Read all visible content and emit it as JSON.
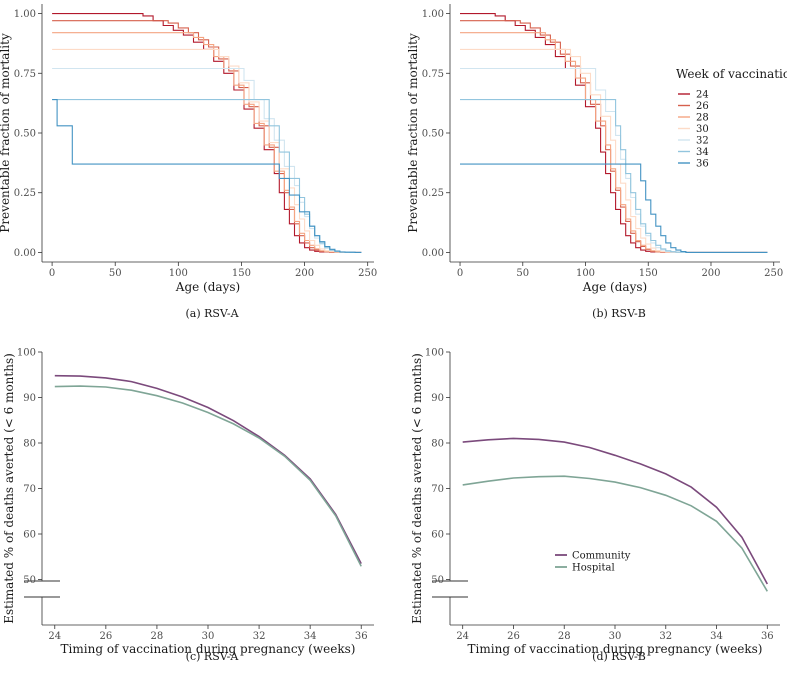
{
  "chart_data": [
    {
      "id": "a",
      "type": "line",
      "step": true,
      "caption": "(a) RSV-A",
      "xlabel": "Age (days)",
      "ylabel": "Preventable fraction of mortality",
      "xlim": [
        -8,
        255
      ],
      "ylim": [
        -0.04,
        1.04
      ],
      "xticks": [
        0,
        50,
        100,
        150,
        200,
        250
      ],
      "yticks": [
        0.0,
        0.25,
        0.5,
        0.75,
        1.0
      ],
      "ytick_labels": [
        "0.00",
        "0.25",
        "0.50",
        "0.75",
        "1.00"
      ],
      "grid": false,
      "series": [
        {
          "name": "24",
          "color": "#b2182b",
          "x": [
            0,
            72,
            80,
            88,
            96,
            104,
            112,
            120,
            128,
            136,
            144,
            152,
            160,
            168,
            176,
            180,
            184,
            188,
            192,
            196,
            200,
            204,
            208,
            212,
            220,
            245
          ],
          "y": [
            1.0,
            0.99,
            0.97,
            0.95,
            0.93,
            0.91,
            0.88,
            0.85,
            0.8,
            0.75,
            0.68,
            0.6,
            0.52,
            0.43,
            0.33,
            0.25,
            0.18,
            0.12,
            0.07,
            0.04,
            0.02,
            0.01,
            0.005,
            0.002,
            0.0,
            0.0
          ]
        },
        {
          "name": "26",
          "color": "#d6604d",
          "x": [
            0,
            92,
            100,
            108,
            116,
            124,
            132,
            140,
            148,
            156,
            164,
            172,
            180,
            184,
            188,
            192,
            196,
            200,
            204,
            208,
            212,
            220,
            245
          ],
          "y": [
            0.97,
            0.96,
            0.94,
            0.92,
            0.89,
            0.86,
            0.81,
            0.76,
            0.69,
            0.61,
            0.53,
            0.44,
            0.33,
            0.25,
            0.18,
            0.12,
            0.07,
            0.04,
            0.02,
            0.01,
            0.005,
            0.0,
            0.0
          ]
        },
        {
          "name": "28",
          "color": "#f4a582",
          "x": [
            0,
            112,
            120,
            128,
            136,
            144,
            152,
            160,
            168,
            176,
            184,
            188,
            192,
            196,
            200,
            204,
            208,
            212,
            216,
            224,
            245
          ],
          "y": [
            0.92,
            0.9,
            0.87,
            0.82,
            0.77,
            0.7,
            0.62,
            0.54,
            0.45,
            0.34,
            0.26,
            0.19,
            0.13,
            0.08,
            0.05,
            0.03,
            0.015,
            0.007,
            0.003,
            0.0,
            0.0
          ]
        },
        {
          "name": "30",
          "color": "#fddbc7",
          "x": [
            0,
            132,
            140,
            148,
            156,
            164,
            172,
            180,
            188,
            192,
            196,
            200,
            204,
            208,
            212,
            216,
            220,
            228,
            245
          ],
          "y": [
            0.85,
            0.82,
            0.78,
            0.71,
            0.63,
            0.55,
            0.46,
            0.35,
            0.27,
            0.2,
            0.14,
            0.09,
            0.05,
            0.03,
            0.015,
            0.007,
            0.003,
            0.0,
            0.0
          ]
        },
        {
          "name": "32",
          "color": "#d1e5f0",
          "x": [
            0,
            152,
            160,
            168,
            176,
            184,
            192,
            196,
            200,
            204,
            208,
            212,
            216,
            220,
            224,
            232,
            245
          ],
          "y": [
            0.77,
            0.72,
            0.64,
            0.56,
            0.47,
            0.36,
            0.28,
            0.21,
            0.15,
            0.1,
            0.06,
            0.035,
            0.018,
            0.008,
            0.003,
            0.0,
            0.0
          ]
        },
        {
          "name": "34",
          "color": "#92c5de",
          "x": [
            0,
            172,
            180,
            188,
            196,
            200,
            204,
            208,
            212,
            216,
            220,
            224,
            228,
            236,
            245
          ],
          "y": [
            0.64,
            0.53,
            0.42,
            0.31,
            0.23,
            0.16,
            0.11,
            0.07,
            0.04,
            0.02,
            0.01,
            0.004,
            0.001,
            0.0,
            0.0
          ]
        },
        {
          "name": "36",
          "color": "#4393c3",
          "x": [
            0,
            4,
            16,
            172,
            180,
            188,
            196,
            204,
            208,
            212,
            216,
            220,
            224,
            228,
            232,
            240,
            245
          ],
          "y": [
            0.64,
            0.53,
            0.37,
            0.37,
            0.31,
            0.24,
            0.17,
            0.11,
            0.07,
            0.045,
            0.025,
            0.013,
            0.006,
            0.002,
            0.001,
            0.0,
            0.0
          ]
        }
      ]
    },
    {
      "id": "b",
      "type": "line",
      "step": true,
      "caption": "(b) RSV-B",
      "xlabel": "Age (days)",
      "ylabel": "Preventable fraction of mortality",
      "xlim": [
        -8,
        255
      ],
      "ylim": [
        -0.04,
        1.04
      ],
      "xticks": [
        0,
        50,
        100,
        150,
        200,
        250
      ],
      "yticks": [
        0.0,
        0.25,
        0.5,
        0.75,
        1.0
      ],
      "ytick_labels": [
        "0.00",
        "0.25",
        "0.50",
        "0.75",
        "1.00"
      ],
      "grid": false,
      "legend": {
        "title": "Week of vaccination",
        "position": "right"
      },
      "series": [
        {
          "name": "24",
          "color": "#b2182b",
          "x": [
            0,
            28,
            36,
            44,
            52,
            60,
            68,
            76,
            84,
            92,
            100,
            108,
            112,
            116,
            120,
            124,
            128,
            132,
            136,
            140,
            144,
            148,
            152,
            160,
            245
          ],
          "y": [
            1.0,
            0.99,
            0.97,
            0.95,
            0.93,
            0.9,
            0.87,
            0.82,
            0.77,
            0.7,
            0.61,
            0.52,
            0.42,
            0.33,
            0.25,
            0.18,
            0.12,
            0.07,
            0.04,
            0.02,
            0.01,
            0.005,
            0.002,
            0.0,
            0.0
          ]
        },
        {
          "name": "26",
          "color": "#d6604d",
          "x": [
            0,
            48,
            56,
            64,
            72,
            80,
            88,
            96,
            104,
            112,
            116,
            120,
            124,
            128,
            132,
            136,
            140,
            144,
            148,
            152,
            156,
            164,
            245
          ],
          "y": [
            0.97,
            0.96,
            0.94,
            0.91,
            0.88,
            0.83,
            0.78,
            0.71,
            0.62,
            0.53,
            0.43,
            0.34,
            0.26,
            0.19,
            0.13,
            0.08,
            0.045,
            0.025,
            0.012,
            0.005,
            0.002,
            0.0,
            0.0
          ]
        },
        {
          "name": "28",
          "color": "#f4a582",
          "x": [
            0,
            68,
            76,
            84,
            92,
            100,
            108,
            116,
            120,
            124,
            128,
            132,
            136,
            140,
            144,
            148,
            152,
            156,
            160,
            168,
            245
          ],
          "y": [
            0.92,
            0.89,
            0.85,
            0.8,
            0.73,
            0.64,
            0.55,
            0.45,
            0.35,
            0.27,
            0.2,
            0.14,
            0.09,
            0.05,
            0.03,
            0.015,
            0.007,
            0.003,
            0.001,
            0.0,
            0.0
          ]
        },
        {
          "name": "30",
          "color": "#fddbc7",
          "x": [
            0,
            88,
            96,
            104,
            112,
            120,
            124,
            128,
            132,
            136,
            140,
            144,
            148,
            152,
            156,
            160,
            164,
            172,
            245
          ],
          "y": [
            0.85,
            0.82,
            0.75,
            0.66,
            0.57,
            0.47,
            0.37,
            0.29,
            0.22,
            0.15,
            0.1,
            0.06,
            0.035,
            0.018,
            0.008,
            0.003,
            0.001,
            0.0,
            0.0
          ]
        },
        {
          "name": "32",
          "color": "#d1e5f0",
          "x": [
            0,
            108,
            116,
            124,
            128,
            132,
            136,
            140,
            144,
            148,
            152,
            156,
            160,
            164,
            168,
            176,
            245
          ],
          "y": [
            0.77,
            0.68,
            0.59,
            0.49,
            0.39,
            0.31,
            0.23,
            0.16,
            0.11,
            0.07,
            0.04,
            0.02,
            0.01,
            0.004,
            0.001,
            0.0,
            0.0
          ]
        },
        {
          "name": "34",
          "color": "#92c5de",
          "x": [
            0,
            124,
            128,
            132,
            136,
            140,
            144,
            148,
            152,
            156,
            160,
            164,
            168,
            172,
            180,
            245
          ],
          "y": [
            0.64,
            0.53,
            0.43,
            0.33,
            0.25,
            0.18,
            0.12,
            0.08,
            0.05,
            0.03,
            0.015,
            0.007,
            0.003,
            0.001,
            0.0,
            0.0
          ]
        },
        {
          "name": "36",
          "color": "#4393c3",
          "x": [
            0,
            144,
            148,
            152,
            156,
            160,
            164,
            168,
            172,
            176,
            180,
            245
          ],
          "y": [
            0.37,
            0.3,
            0.22,
            0.16,
            0.11,
            0.07,
            0.04,
            0.02,
            0.01,
            0.004,
            0.0,
            0.0
          ]
        }
      ]
    },
    {
      "id": "c",
      "type": "line",
      "caption": "(c) RSV-A",
      "xlabel": "Timing of vaccination during pregnancy (weeks)",
      "ylabel": "Estimated % of deaths averted (< 6 months)",
      "xlim": [
        23.5,
        36.5
      ],
      "ylim": [
        40,
        100
      ],
      "axis_break": true,
      "xticks": [
        24,
        26,
        28,
        30,
        32,
        34,
        36
      ],
      "yticks": [
        50,
        60,
        70,
        80,
        90,
        100
      ],
      "grid": false,
      "x": [
        24,
        25,
        26,
        27,
        28,
        29,
        30,
        31,
        32,
        33,
        34,
        35,
        36
      ],
      "series": [
        {
          "name": "Community",
          "color": "#7b4a7c",
          "values": [
            94.8,
            94.7,
            94.3,
            93.5,
            92.0,
            90.1,
            87.8,
            84.9,
            81.4,
            77.3,
            72.1,
            64.3,
            53.5
          ]
        },
        {
          "name": "Hospital",
          "color": "#7fa596",
          "values": [
            92.4,
            92.5,
            92.3,
            91.6,
            90.4,
            88.8,
            86.7,
            84.2,
            81.1,
            77.1,
            71.8,
            64.0,
            52.9
          ]
        }
      ]
    },
    {
      "id": "d",
      "type": "line",
      "caption": "(d) RSV-B",
      "xlabel": "Timing of vaccination during pregnancy (weeks)",
      "ylabel": "Estimated % of deaths averted (< 6 months)",
      "xlim": [
        23.5,
        36.5
      ],
      "ylim": [
        40,
        100
      ],
      "axis_break": true,
      "xticks": [
        24,
        26,
        28,
        30,
        32,
        34,
        36
      ],
      "yticks": [
        50,
        60,
        70,
        80,
        90,
        100
      ],
      "grid": false,
      "legend": {
        "position": "bottom-center"
      },
      "x": [
        24,
        25,
        26,
        27,
        28,
        29,
        30,
        31,
        32,
        33,
        34,
        35,
        36
      ],
      "series": [
        {
          "name": "Community",
          "color": "#7b4a7c",
          "values": [
            80.2,
            80.7,
            81.0,
            80.8,
            80.2,
            79.0,
            77.3,
            75.4,
            73.2,
            70.3,
            65.9,
            59.3,
            49.0
          ]
        },
        {
          "name": "Hospital",
          "color": "#7fa596",
          "values": [
            70.8,
            71.6,
            72.3,
            72.6,
            72.7,
            72.2,
            71.4,
            70.2,
            68.5,
            66.2,
            62.8,
            56.9,
            47.4
          ]
        }
      ]
    }
  ]
}
